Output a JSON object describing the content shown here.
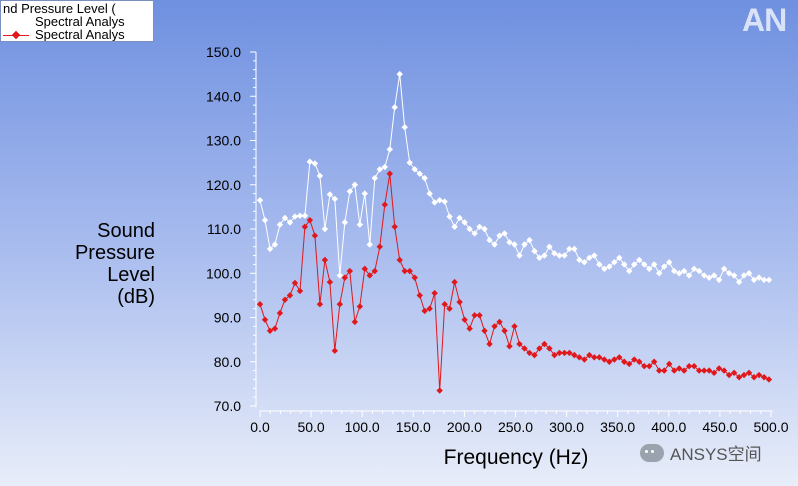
{
  "legend": {
    "title": "nd Pressure Level (",
    "entries": [
      {
        "label": "Spectral Analys",
        "color": "#ffffff"
      },
      {
        "label": "Spectral Analys",
        "color": "#e0181c"
      }
    ]
  },
  "logo": "AN",
  "watermark": "ANSYS空间",
  "chart_data": {
    "type": "line",
    "xlabel": "Frequency (Hz)",
    "ylabel": [
      "Sound",
      "Pressure",
      "Level",
      "(dB)"
    ],
    "xlim": [
      0,
      500
    ],
    "ylim": [
      70,
      150
    ],
    "x_ticks": [
      "0.0",
      "50.0",
      "100.0",
      "150.0",
      "200.0",
      "250.0",
      "300.0",
      "350.0",
      "400.0",
      "450.0",
      "500.0"
    ],
    "y_ticks": [
      "70.0",
      "80.0",
      "90.0",
      "100.0",
      "110.0",
      "120.0",
      "130.0",
      "140.0",
      "150.0"
    ],
    "grid": false,
    "legend_position": "top-left",
    "series": [
      {
        "color": "#ffffff",
        "marker": "diamond",
        "points": [
          [
            0,
            116.5
          ],
          [
            4.9,
            112
          ],
          [
            9.8,
            105.5
          ],
          [
            14.6,
            106.5
          ],
          [
            19.5,
            111
          ],
          [
            24.4,
            112.5
          ],
          [
            29.3,
            111.5
          ],
          [
            34.2,
            112.8
          ],
          [
            39.1,
            113
          ],
          [
            43.9,
            113
          ],
          [
            48.8,
            125.2
          ],
          [
            53.7,
            124.8
          ],
          [
            58.6,
            122
          ],
          [
            63.5,
            110
          ],
          [
            68.4,
            117.8
          ],
          [
            73.2,
            116.8
          ],
          [
            78.1,
            99.5
          ],
          [
            83,
            111.5
          ],
          [
            87.9,
            118.5
          ],
          [
            92.8,
            120
          ],
          [
            97.7,
            111
          ],
          [
            102.5,
            118
          ],
          [
            107.4,
            106.5
          ],
          [
            112.3,
            121.5
          ],
          [
            117.2,
            123.5
          ],
          [
            122.1,
            124
          ],
          [
            127,
            128
          ],
          [
            131.8,
            137.5
          ],
          [
            136.7,
            145
          ],
          [
            141.6,
            133
          ],
          [
            146.5,
            125
          ],
          [
            151.4,
            123.5
          ],
          [
            156.3,
            122.5
          ],
          [
            161.1,
            121.5
          ],
          [
            166,
            118
          ],
          [
            170.9,
            116
          ],
          [
            175.8,
            116.5
          ],
          [
            180.7,
            116.2
          ],
          [
            185.5,
            112.8
          ],
          [
            190.4,
            110.5
          ],
          [
            195.3,
            112.5
          ],
          [
            200.2,
            111.5
          ],
          [
            205.1,
            110
          ],
          [
            210,
            109
          ],
          [
            214.8,
            110.5
          ],
          [
            219.7,
            110
          ],
          [
            224.6,
            107.5
          ],
          [
            229.5,
            106.5
          ],
          [
            234.4,
            108.5
          ],
          [
            239.3,
            109
          ],
          [
            244.1,
            107
          ],
          [
            249,
            106.5
          ],
          [
            253.9,
            104
          ],
          [
            258.8,
            106.5
          ],
          [
            263.7,
            107.5
          ],
          [
            268.6,
            105
          ],
          [
            273.4,
            103.5
          ],
          [
            278.3,
            104
          ],
          [
            283.2,
            106
          ],
          [
            288.1,
            104.5
          ],
          [
            293,
            104
          ],
          [
            297.9,
            104
          ],
          [
            302.7,
            105.5
          ],
          [
            307.6,
            105.5
          ],
          [
            312.5,
            103
          ],
          [
            317.4,
            102.5
          ],
          [
            322.3,
            103.5
          ],
          [
            327.1,
            104
          ],
          [
            332,
            102
          ],
          [
            336.9,
            101
          ],
          [
            341.8,
            101.5
          ],
          [
            346.7,
            102.5
          ],
          [
            351.6,
            103.5
          ],
          [
            356.4,
            102
          ],
          [
            361.3,
            100.5
          ],
          [
            366.2,
            102
          ],
          [
            371.1,
            103
          ],
          [
            376,
            102
          ],
          [
            380.9,
            101
          ],
          [
            385.7,
            102
          ],
          [
            390.6,
            100
          ],
          [
            395.5,
            101.5
          ],
          [
            400.4,
            102.5
          ],
          [
            405.3,
            100.5
          ],
          [
            410.2,
            100
          ],
          [
            415,
            100.5
          ],
          [
            419.9,
            99.5
          ],
          [
            424.8,
            101
          ],
          [
            429.7,
            100.5
          ],
          [
            434.6,
            99.5
          ],
          [
            439.5,
            99
          ],
          [
            444.3,
            99.5
          ],
          [
            449.2,
            98.5
          ],
          [
            454.1,
            101
          ],
          [
            459,
            100
          ],
          [
            463.9,
            99.5
          ],
          [
            468.8,
            98
          ],
          [
            473.6,
            99.5
          ],
          [
            478.5,
            100
          ],
          [
            483.4,
            98.5
          ],
          [
            488.3,
            99
          ],
          [
            493.2,
            98.5
          ],
          [
            498,
            98.5
          ]
        ]
      },
      {
        "color": "#e0181c",
        "marker": "diamond",
        "points": [
          [
            0,
            93
          ],
          [
            4.9,
            89.5
          ],
          [
            9.8,
            87
          ],
          [
            14.6,
            87.5
          ],
          [
            19.5,
            91
          ],
          [
            24.4,
            94
          ],
          [
            29.3,
            95
          ],
          [
            34.2,
            97.8
          ],
          [
            39.1,
            96
          ],
          [
            43.9,
            110.5
          ],
          [
            48.8,
            112
          ],
          [
            53.7,
            108.5
          ],
          [
            58.6,
            93
          ],
          [
            63.5,
            103
          ],
          [
            68.4,
            98
          ],
          [
            73.2,
            82.5
          ],
          [
            78.1,
            93
          ],
          [
            83,
            99
          ],
          [
            87.9,
            100.5
          ],
          [
            92.8,
            89
          ],
          [
            97.7,
            92.5
          ],
          [
            102.5,
            101
          ],
          [
            107.4,
            99.5
          ],
          [
            112.3,
            100.5
          ],
          [
            117.2,
            106
          ],
          [
            122.1,
            115.5
          ],
          [
            127,
            122.5
          ],
          [
            131.8,
            110.5
          ],
          [
            136.7,
            103
          ],
          [
            141.6,
            100.5
          ],
          [
            146.5,
            100.5
          ],
          [
            151.4,
            99
          ],
          [
            156.3,
            95
          ],
          [
            161.1,
            91.5
          ],
          [
            166,
            92
          ],
          [
            170.9,
            95.5
          ],
          [
            175.8,
            73.5
          ],
          [
            180.7,
            93
          ],
          [
            185.5,
            92
          ],
          [
            190.4,
            98
          ],
          [
            195.3,
            93.5
          ],
          [
            200.2,
            89.5
          ],
          [
            205.1,
            87.5
          ],
          [
            210,
            90.5
          ],
          [
            214.8,
            90.5
          ],
          [
            219.7,
            87
          ],
          [
            224.6,
            84
          ],
          [
            229.5,
            88
          ],
          [
            234.4,
            89
          ],
          [
            239.3,
            87
          ],
          [
            244.1,
            83.5
          ],
          [
            249,
            88
          ],
          [
            253.9,
            84
          ],
          [
            258.8,
            83
          ],
          [
            263.7,
            82
          ],
          [
            268.6,
            81.5
          ],
          [
            273.4,
            83
          ],
          [
            278.3,
            84
          ],
          [
            283.2,
            83
          ],
          [
            288.1,
            81.5
          ],
          [
            293,
            82
          ],
          [
            297.9,
            82
          ],
          [
            302.7,
            82
          ],
          [
            307.6,
            81.5
          ],
          [
            312.5,
            81
          ],
          [
            317.4,
            80.5
          ],
          [
            322.3,
            81.5
          ],
          [
            327.1,
            81
          ],
          [
            332,
            81
          ],
          [
            336.9,
            80.5
          ],
          [
            341.8,
            80
          ],
          [
            346.7,
            80.5
          ],
          [
            351.6,
            81
          ],
          [
            356.4,
            80
          ],
          [
            361.3,
            79.5
          ],
          [
            366.2,
            80.5
          ],
          [
            371.1,
            80
          ],
          [
            376,
            79
          ],
          [
            380.9,
            79
          ],
          [
            385.7,
            80
          ],
          [
            390.6,
            78
          ],
          [
            395.5,
            78
          ],
          [
            400.4,
            79.5
          ],
          [
            405.3,
            78
          ],
          [
            410.2,
            78.5
          ],
          [
            415,
            78
          ],
          [
            419.9,
            79
          ],
          [
            424.8,
            79
          ],
          [
            429.7,
            78
          ],
          [
            434.6,
            78
          ],
          [
            439.5,
            78
          ],
          [
            444.3,
            77.5
          ],
          [
            449.2,
            78.5
          ],
          [
            454.1,
            78
          ],
          [
            459,
            77
          ],
          [
            463.9,
            77.5
          ],
          [
            468.8,
            76.5
          ],
          [
            473.6,
            77
          ],
          [
            478.5,
            77.5
          ],
          [
            483.4,
            76.5
          ],
          [
            488.3,
            77
          ],
          [
            493.2,
            76.5
          ],
          [
            498,
            76
          ]
        ]
      }
    ]
  }
}
